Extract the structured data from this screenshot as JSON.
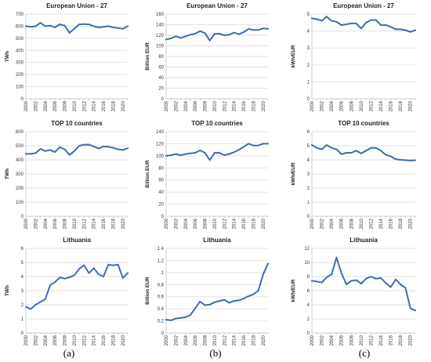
{
  "captions": [
    "(a)",
    "(b)",
    "(c)"
  ],
  "colors": {
    "line": "#3d6db5",
    "grid": "#d9d9d9"
  },
  "chart_data": [
    {
      "type": "line",
      "title": "European Union - 27",
      "ylabel": "TWh",
      "ylim": [
        0,
        700
      ],
      "yticks": [
        0,
        100,
        200,
        300,
        400,
        500,
        600,
        700
      ],
      "ytick_labels": [
        "0",
        "100",
        "200",
        "300",
        "400",
        "500",
        "600",
        "700"
      ],
      "x": [
        2000,
        2001,
        2002,
        2003,
        2004,
        2005,
        2006,
        2007,
        2008,
        2009,
        2010,
        2011,
        2012,
        2013,
        2014,
        2015,
        2016,
        2017,
        2018,
        2019,
        2020,
        2021
      ],
      "xtick_labels": [
        "2000",
        "2002",
        "2004",
        "2006",
        "2008",
        "2010",
        "2012",
        "2014",
        "2016",
        "2018",
        "2020"
      ],
      "values": [
        600,
        595,
        600,
        628,
        600,
        605,
        590,
        615,
        605,
        545,
        580,
        615,
        618,
        615,
        600,
        590,
        595,
        600,
        590,
        585,
        578,
        600
      ],
      "grid": true
    },
    {
      "type": "line",
      "title": "European Union - 27",
      "ylabel": "Billion EUR",
      "ylim": [
        0,
        160
      ],
      "yticks": [
        0,
        20,
        40,
        60,
        80,
        100,
        120,
        140,
        160
      ],
      "ytick_labels": [
        "0",
        "20",
        "40",
        "60",
        "80",
        "100",
        "120",
        "140",
        "160"
      ],
      "x": [
        2000,
        2001,
        2002,
        2003,
        2004,
        2005,
        2006,
        2007,
        2008,
        2009,
        2010,
        2011,
        2012,
        2013,
        2014,
        2015,
        2016,
        2017,
        2018,
        2019,
        2020,
        2021
      ],
      "xtick_labels": [
        "2000",
        "2002",
        "2004",
        "2006",
        "2008",
        "2010",
        "2012",
        "2014",
        "2016",
        "2018",
        "2020"
      ],
      "values": [
        112,
        114,
        118,
        115,
        118,
        121,
        123,
        128,
        124,
        110,
        123,
        123,
        120,
        121,
        125,
        122,
        126,
        132,
        130,
        130,
        133,
        132
      ],
      "grid": true
    },
    {
      "type": "line",
      "title": "European Union - 27",
      "ylabel": "kWh/EUR",
      "ylim": [
        0,
        5
      ],
      "yticks": [
        0,
        1,
        2,
        3,
        4,
        5
      ],
      "ytick_labels": [
        "0",
        "1",
        "2",
        "3",
        "4",
        "5"
      ],
      "x": [
        2000,
        2001,
        2002,
        2003,
        2004,
        2005,
        2006,
        2007,
        2008,
        2009,
        2010,
        2011,
        2012,
        2013,
        2014,
        2015,
        2016,
        2017,
        2018,
        2019,
        2020,
        2021
      ],
      "xtick_labels": [
        "2000",
        "2002",
        "2004",
        "2006",
        "2008",
        "2010",
        "2012",
        "2014",
        "2016",
        "2018",
        "2020"
      ],
      "values": [
        4.75,
        4.7,
        4.6,
        4.85,
        4.6,
        4.55,
        4.35,
        4.4,
        4.45,
        4.45,
        4.15,
        4.5,
        4.65,
        4.65,
        4.35,
        4.35,
        4.25,
        4.1,
        4.1,
        4.05,
        3.95,
        4.05
      ],
      "grid": true
    },
    {
      "type": "line",
      "title": "TOP 10 countries",
      "ylabel": "TWh",
      "ylim": [
        0,
        600
      ],
      "yticks": [
        0,
        100,
        200,
        300,
        400,
        500,
        600
      ],
      "ytick_labels": [
        "0",
        "100",
        "200",
        "300",
        "400",
        "500",
        "600"
      ],
      "x": [
        2000,
        2001,
        2002,
        2003,
        2004,
        2005,
        2006,
        2007,
        2008,
        2009,
        2010,
        2011,
        2012,
        2013,
        2014,
        2015,
        2016,
        2017,
        2018,
        2019,
        2020,
        2021
      ],
      "xtick_labels": [
        "2000",
        "2002",
        "2004",
        "2006",
        "2008",
        "2010",
        "2012",
        "2014",
        "2016",
        "2018",
        "2020"
      ],
      "values": [
        442,
        442,
        447,
        478,
        462,
        470,
        455,
        490,
        475,
        435,
        462,
        500,
        508,
        508,
        495,
        480,
        495,
        492,
        485,
        475,
        470,
        482
      ],
      "grid": true
    },
    {
      "type": "line",
      "title": "TOP 10 countries",
      "ylabel": "Billion EUR",
      "ylim": [
        0,
        140
      ],
      "yticks": [
        0,
        20,
        40,
        60,
        80,
        100,
        120,
        140
      ],
      "ytick_labels": [
        "0",
        "20",
        "40",
        "60",
        "80",
        "100",
        "120",
        "140"
      ],
      "x": [
        2000,
        2001,
        2002,
        2003,
        2004,
        2005,
        2006,
        2007,
        2008,
        2009,
        2010,
        2011,
        2012,
        2013,
        2014,
        2015,
        2016,
        2017,
        2018,
        2019,
        2020,
        2021
      ],
      "xtick_labels": [
        "2000",
        "2002",
        "2004",
        "2006",
        "2008",
        "2010",
        "2012",
        "2014",
        "2016",
        "2018",
        "2020"
      ],
      "values": [
        100,
        101,
        103,
        101,
        103,
        104,
        105,
        109,
        105,
        93,
        105,
        105,
        101,
        103,
        106,
        110,
        115,
        120,
        117,
        117,
        120,
        120
      ],
      "grid": true
    },
    {
      "type": "line",
      "title": "TOP 10 countries",
      "ylabel": "kWh/EUR",
      "ylim": [
        0,
        6
      ],
      "yticks": [
        0,
        1,
        2,
        3,
        4,
        5,
        6
      ],
      "ytick_labels": [
        "0",
        "1",
        "2",
        "3",
        "4",
        "5",
        "6"
      ],
      "x": [
        2000,
        2001,
        2002,
        2003,
        2004,
        2005,
        2006,
        2007,
        2008,
        2009,
        2010,
        2011,
        2012,
        2013,
        2014,
        2015,
        2016,
        2017,
        2018,
        2019,
        2020,
        2021
      ],
      "xtick_labels": [
        "2000",
        "2002",
        "2004",
        "2006",
        "2008",
        "2010",
        "2012",
        "2014",
        "2016",
        "2018",
        "2020"
      ],
      "values": [
        5.05,
        4.85,
        4.75,
        5.05,
        4.85,
        4.75,
        4.4,
        4.5,
        4.5,
        4.65,
        4.45,
        4.65,
        4.85,
        4.85,
        4.65,
        4.35,
        4.25,
        4.05,
        4.0,
        3.98,
        3.95,
        3.97
      ],
      "grid": true
    },
    {
      "type": "line",
      "title": "Lithuania",
      "ylabel": "TWh",
      "ylim": [
        0,
        6
      ],
      "yticks": [
        0,
        1,
        2,
        3,
        4,
        5,
        6
      ],
      "ytick_labels": [
        "0",
        "1",
        "2",
        "3",
        "4",
        "5",
        "6"
      ],
      "x": [
        2000,
        2001,
        2002,
        2003,
        2004,
        2005,
        2006,
        2007,
        2008,
        2009,
        2010,
        2011,
        2012,
        2013,
        2014,
        2015,
        2016,
        2017,
        2018,
        2019,
        2020,
        2021
      ],
      "xtick_labels": [
        "2000",
        "2002",
        "2004",
        "2006",
        "2008",
        "2010",
        "2012",
        "2014",
        "2016",
        "2018",
        "2020"
      ],
      "values": [
        1.85,
        1.7,
        2.0,
        2.2,
        2.4,
        3.4,
        3.6,
        3.95,
        3.85,
        3.95,
        4.1,
        4.55,
        4.8,
        4.25,
        4.6,
        4.15,
        4.0,
        4.85,
        4.8,
        4.85,
        3.9,
        4.25
      ],
      "grid": true
    },
    {
      "type": "line",
      "title": "Lithuania",
      "ylabel": "Billion EUR",
      "ylim": [
        0,
        1.4
      ],
      "yticks": [
        0,
        0.2,
        0.4,
        0.6,
        0.8,
        1.0,
        1.2,
        1.4
      ],
      "ytick_labels": [
        "0",
        "0.2",
        "0.4",
        "0.6",
        "0.8",
        "1",
        "1.2",
        "1.4"
      ],
      "x": [
        2000,
        2001,
        2002,
        2003,
        2004,
        2005,
        2006,
        2007,
        2008,
        2009,
        2010,
        2011,
        2012,
        2013,
        2014,
        2015,
        2016,
        2017,
        2018,
        2019,
        2020,
        2021
      ],
      "xtick_labels": [
        "2000",
        "2002",
        "2004",
        "2006",
        "2008",
        "2010",
        "2012",
        "2014",
        "2016",
        "2018",
        "2020"
      ],
      "values": [
        0.22,
        0.21,
        0.24,
        0.25,
        0.26,
        0.3,
        0.41,
        0.52,
        0.46,
        0.47,
        0.51,
        0.53,
        0.55,
        0.5,
        0.53,
        0.54,
        0.57,
        0.61,
        0.64,
        0.7,
        0.97,
        1.15
      ],
      "grid": true
    },
    {
      "type": "line",
      "title": "Lithuania",
      "ylabel": "kWh/EUR",
      "ylim": [
        0,
        12
      ],
      "yticks": [
        0,
        2,
        4,
        6,
        8,
        10,
        12
      ],
      "ytick_labels": [
        "0",
        "2",
        "4",
        "6",
        "8",
        "10",
        "12"
      ],
      "x": [
        2000,
        2001,
        2002,
        2003,
        2004,
        2005,
        2006,
        2007,
        2008,
        2009,
        2010,
        2011,
        2012,
        2013,
        2014,
        2015,
        2016,
        2017,
        2018,
        2019,
        2020,
        2021
      ],
      "xtick_labels": [
        "2000",
        "2002",
        "2004",
        "2006",
        "2008",
        "2010",
        "2012",
        "2014",
        "2016",
        "2018",
        "2020"
      ],
      "values": [
        7.4,
        7.3,
        7.15,
        7.9,
        8.3,
        10.7,
        8.5,
        6.9,
        7.4,
        7.5,
        7.0,
        7.7,
        8.0,
        7.7,
        7.8,
        7.1,
        6.5,
        7.6,
        6.9,
        6.4,
        3.5,
        3.2
      ],
      "grid": true
    }
  ]
}
